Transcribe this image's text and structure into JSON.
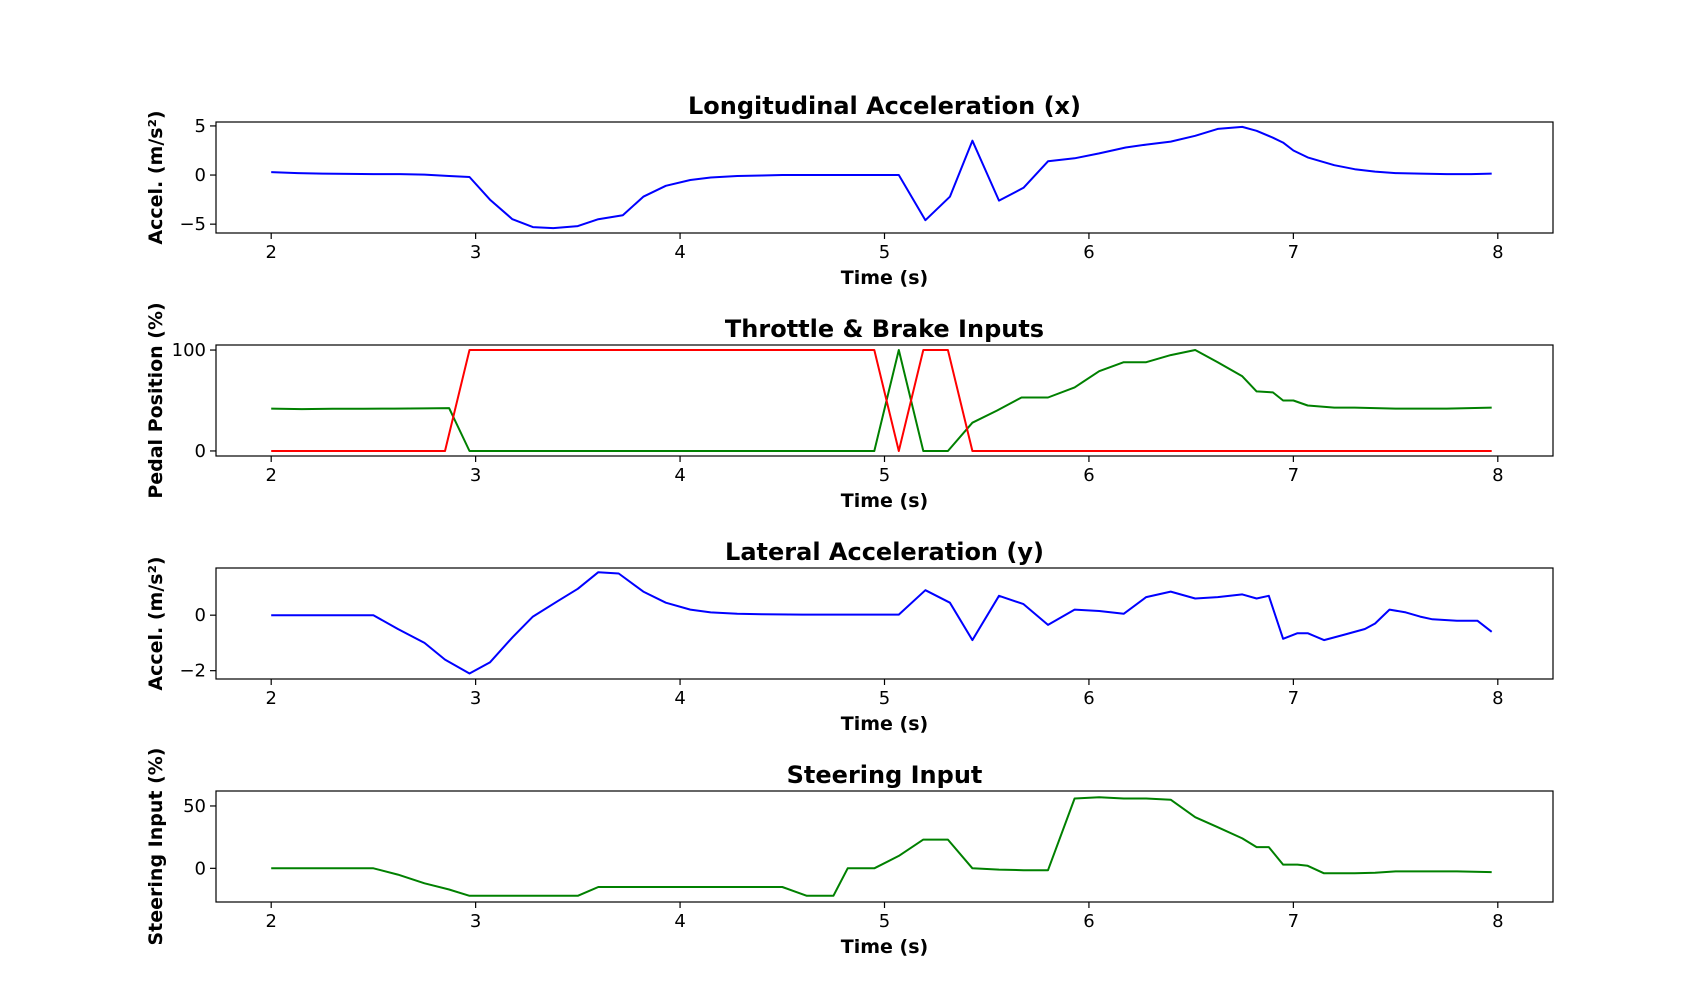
{
  "chart_data": [
    {
      "type": "line",
      "title": "Longitudinal Acceleration (x)",
      "xlabel": "Time (s)",
      "ylabel": "Accel. (m/s²)",
      "xlim": [
        1.73,
        8.27
      ],
      "ylim": [
        -5.9,
        5.4
      ],
      "x_ticks": [
        2,
        3,
        4,
        5,
        6,
        7,
        8
      ],
      "y_ticks": [
        -5,
        0,
        5
      ],
      "series": [
        {
          "color": "#0000ff",
          "x": [
            2.0,
            2.13,
            2.25,
            2.38,
            2.5,
            2.63,
            2.75,
            2.87,
            2.97,
            3.07,
            3.18,
            3.28,
            3.38,
            3.5,
            3.6,
            3.72,
            3.82,
            3.93,
            4.05,
            4.15,
            4.28,
            4.4,
            4.5,
            4.62,
            4.75,
            4.87,
            4.95,
            5.07,
            5.2,
            5.32,
            5.43,
            5.56,
            5.68,
            5.8,
            5.93,
            6.05,
            6.18,
            6.28,
            6.4,
            6.52,
            6.63,
            6.75,
            6.82,
            6.9,
            6.95,
            7.0,
            7.07,
            7.2,
            7.3,
            7.4,
            7.5,
            7.62,
            7.75,
            7.87,
            7.97
          ],
          "y": [
            0.3,
            0.2,
            0.15,
            0.12,
            0.1,
            0.1,
            0.05,
            -0.1,
            -0.2,
            -2.5,
            -4.5,
            -5.3,
            -5.4,
            -5.2,
            -4.5,
            -4.1,
            -2.2,
            -1.1,
            -0.5,
            -0.25,
            -0.1,
            -0.05,
            0.0,
            0.0,
            0.0,
            0.0,
            0.0,
            0.0,
            -4.6,
            -2.2,
            3.5,
            -2.6,
            -1.3,
            1.4,
            1.7,
            2.2,
            2.8,
            3.1,
            3.4,
            4.0,
            4.7,
            4.9,
            4.5,
            3.8,
            3.3,
            2.5,
            1.8,
            1.0,
            0.6,
            0.35,
            0.2,
            0.15,
            0.1,
            0.1,
            0.15
          ]
        }
      ]
    },
    {
      "type": "line",
      "title": "Throttle & Brake Inputs",
      "xlabel": "Time (s)",
      "ylabel": "Pedal Position (%)",
      "xlim": [
        1.73,
        8.27
      ],
      "ylim": [
        -5,
        105
      ],
      "x_ticks": [
        2,
        3,
        4,
        5,
        6,
        7,
        8
      ],
      "y_ticks": [
        0,
        100
      ],
      "series": [
        {
          "color": "#008000",
          "x": [
            2.0,
            2.15,
            2.3,
            2.45,
            2.6,
            2.75,
            2.87,
            2.97,
            3.1,
            3.5,
            4.0,
            4.5,
            4.95,
            5.07,
            5.19,
            5.31,
            5.43,
            5.55,
            5.67,
            5.8,
            5.93,
            6.05,
            6.17,
            6.28,
            6.4,
            6.52,
            6.63,
            6.75,
            6.82,
            6.9,
            6.95,
            7.0,
            7.07,
            7.2,
            7.3,
            7.5,
            7.75,
            7.97
          ],
          "y": [
            42,
            41.5,
            41.8,
            41.8,
            42,
            42.2,
            42.5,
            0,
            0,
            0,
            0,
            0,
            0,
            100,
            0,
            0,
            28,
            40,
            53,
            53,
            63,
            79,
            88,
            88,
            95,
            100,
            88,
            74,
            59,
            58,
            50,
            50,
            45,
            43,
            43,
            42,
            42,
            43
          ]
        },
        {
          "color": "#ff0000",
          "x": [
            2.0,
            2.5,
            2.85,
            2.97,
            3.5,
            4.0,
            4.5,
            4.95,
            5.07,
            5.19,
            5.31,
            5.43,
            6.0,
            7.0,
            7.97
          ],
          "y": [
            0,
            0,
            0,
            100,
            100,
            100,
            100,
            100,
            0,
            100,
            100,
            0,
            0,
            0,
            0
          ]
        }
      ]
    },
    {
      "type": "line",
      "title": "Lateral Acceleration (y)",
      "xlabel": "Time (s)",
      "ylabel": "Accel.   (m/s²)",
      "xlim": [
        1.73,
        8.27
      ],
      "ylim": [
        -2.3,
        1.7
      ],
      "x_ticks": [
        2,
        3,
        4,
        5,
        6,
        7,
        8
      ],
      "y_ticks": [
        -2,
        0
      ],
      "series": [
        {
          "color": "#0000ff",
          "x": [
            2.0,
            2.25,
            2.5,
            2.62,
            2.75,
            2.85,
            2.97,
            3.07,
            3.18,
            3.28,
            3.4,
            3.5,
            3.6,
            3.7,
            3.82,
            3.93,
            4.05,
            4.15,
            4.28,
            4.4,
            4.6,
            4.8,
            5.07,
            5.2,
            5.32,
            5.43,
            5.56,
            5.68,
            5.8,
            5.93,
            6.05,
            6.17,
            6.28,
            6.4,
            6.52,
            6.63,
            6.75,
            6.82,
            6.88,
            6.95,
            7.02,
            7.07,
            7.15,
            7.25,
            7.35,
            7.4,
            7.47,
            7.55,
            7.62,
            7.68,
            7.8,
            7.9,
            7.97
          ],
          "y": [
            0.0,
            0.0,
            0.0,
            -0.5,
            -1.0,
            -1.6,
            -2.1,
            -1.7,
            -0.8,
            -0.05,
            0.5,
            0.95,
            1.55,
            1.5,
            0.85,
            0.45,
            0.2,
            0.1,
            0.05,
            0.03,
            0.02,
            0.02,
            0.02,
            0.9,
            0.45,
            -0.9,
            0.7,
            0.4,
            -0.35,
            0.2,
            0.15,
            0.05,
            0.65,
            0.85,
            0.6,
            0.65,
            0.75,
            0.6,
            0.7,
            -0.85,
            -0.65,
            -0.65,
            -0.9,
            -0.7,
            -0.5,
            -0.3,
            0.2,
            0.1,
            -0.05,
            -0.15,
            -0.2,
            -0.2,
            -0.6
          ]
        }
      ]
    },
    {
      "type": "line",
      "title": "Steering Input",
      "xlabel": "Time (s)",
      "ylabel": "Steering Input (%)",
      "xlim": [
        1.73,
        8.27
      ],
      "ylim": [
        -27,
        62
      ],
      "x_ticks": [
        2,
        3,
        4,
        5,
        6,
        7,
        8
      ],
      "y_ticks": [
        0,
        50
      ],
      "series": [
        {
          "color": "#008000",
          "x": [
            2.0,
            2.25,
            2.5,
            2.62,
            2.75,
            2.87,
            2.97,
            3.2,
            3.5,
            3.6,
            3.8,
            4.0,
            4.2,
            4.5,
            4.62,
            4.75,
            4.82,
            4.95,
            5.07,
            5.19,
            5.31,
            5.43,
            5.56,
            5.68,
            5.8,
            5.93,
            6.05,
            6.17,
            6.28,
            6.4,
            6.52,
            6.63,
            6.75,
            6.82,
            6.88,
            6.95,
            7.02,
            7.07,
            7.15,
            7.3,
            7.4,
            7.5,
            7.65,
            7.8,
            7.97
          ],
          "y": [
            0,
            0,
            0,
            -5,
            -12,
            -17,
            -22,
            -22,
            -22,
            -15,
            -15,
            -15,
            -15,
            -15,
            -22,
            -22,
            0,
            0,
            10,
            23,
            23,
            0,
            -1,
            -1.5,
            -1.5,
            56,
            57,
            56,
            56,
            55,
            41,
            33,
            24,
            17,
            17,
            3,
            3,
            2,
            -4,
            -4,
            -3.5,
            -2.5,
            -2.5,
            -2.5,
            -3
          ]
        }
      ]
    }
  ]
}
